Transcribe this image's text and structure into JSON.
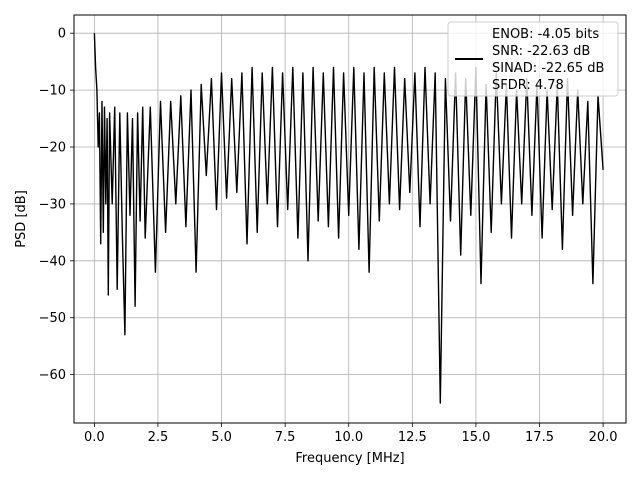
{
  "chart_data": {
    "type": "line",
    "title": "",
    "xlabel": "Frequency [MHz]",
    "ylabel": "PSD [dB]",
    "xlim": [
      -0.8,
      20.9
    ],
    "ylim": [
      -68.5,
      3.2
    ],
    "grid": true,
    "xticks": [
      0.0,
      2.5,
      5.0,
      7.5,
      10.0,
      12.5,
      15.0,
      17.5,
      20.0
    ],
    "xtick_labels": [
      "0.0",
      "2.5",
      "5.0",
      "7.5",
      "10.0",
      "12.5",
      "15.0",
      "17.5",
      "20.0"
    ],
    "yticks": [
      0,
      -10,
      -20,
      -30,
      -40,
      -50,
      -60
    ],
    "ytick_labels": [
      "0",
      "−10",
      "−20",
      "−30",
      "−40",
      "−50",
      "−60"
    ],
    "legend": {
      "placement": "top-right",
      "entries": [
        "ENOB: -4.05 bits",
        "SNR: -22.63 dB",
        "SINAD: -22.65 dB",
        "SFDR: 4.78"
      ]
    },
    "series": [
      {
        "color": "#000000",
        "x": [
          0.0,
          0.05,
          0.1,
          0.15,
          0.2,
          0.25,
          0.3,
          0.35,
          0.4,
          0.45,
          0.5,
          0.55,
          0.6,
          0.7,
          0.8,
          0.9,
          1.0,
          1.1,
          1.2,
          1.3,
          1.4,
          1.5,
          1.6,
          1.7,
          1.8,
          1.9,
          2.0,
          2.2,
          2.4,
          2.6,
          2.8,
          3.0,
          3.2,
          3.4,
          3.6,
          3.8,
          4.0,
          4.2,
          4.4,
          4.6,
          4.8,
          5.0,
          5.2,
          5.4,
          5.6,
          5.8,
          6.0,
          6.2,
          6.4,
          6.6,
          6.8,
          7.0,
          7.2,
          7.4,
          7.6,
          7.8,
          8.0,
          8.2,
          8.4,
          8.6,
          8.8,
          9.0,
          9.2,
          9.4,
          9.6,
          9.8,
          10.0,
          10.2,
          10.4,
          10.6,
          10.8,
          11.0,
          11.2,
          11.4,
          11.6,
          11.8,
          12.0,
          12.2,
          12.4,
          12.6,
          12.8,
          13.0,
          13.2,
          13.4,
          13.6,
          13.8,
          14.0,
          14.2,
          14.4,
          14.6,
          14.8,
          15.0,
          15.2,
          15.4,
          15.6,
          15.8,
          16.0,
          16.2,
          16.4,
          16.6,
          16.8,
          17.0,
          17.2,
          17.4,
          17.6,
          17.8,
          18.0,
          18.2,
          18.4,
          18.6,
          18.8,
          19.0,
          19.2,
          19.4,
          19.6,
          19.8,
          20.0
        ],
        "y": [
          0.0,
          -6.0,
          -10.0,
          -20.0,
          -14.0,
          -37.0,
          -12.0,
          -35.0,
          -13.0,
          -30.0,
          -15.0,
          -46.0,
          -14.0,
          -30.0,
          -13.0,
          -45.0,
          -14.0,
          -35.0,
          -53.0,
          -14.0,
          -32.0,
          -15.0,
          -48.0,
          -14.0,
          -33.0,
          -13.0,
          -36.0,
          -13.0,
          -42.0,
          -12.0,
          -35.0,
          -12.0,
          -30.0,
          -11.0,
          -34.0,
          -10.0,
          -42.0,
          -9.0,
          -25.0,
          -8.0,
          -31.0,
          -7.0,
          -29.0,
          -8.0,
          -28.0,
          -7.0,
          -37.0,
          -6.0,
          -35.0,
          -7.0,
          -30.0,
          -6.0,
          -34.0,
          -7.0,
          -31.0,
          -6.0,
          -36.0,
          -7.0,
          -40.0,
          -6.0,
          -33.0,
          -7.0,
          -34.0,
          -6.0,
          -36.0,
          -7.0,
          -32.0,
          -6.0,
          -38.0,
          -7.0,
          -42.0,
          -6.0,
          -33.0,
          -7.0,
          -30.0,
          -6.0,
          -31.0,
          -8.0,
          -28.0,
          -7.0,
          -34.0,
          -6.0,
          -30.0,
          -7.0,
          -65.0,
          -8.0,
          -33.0,
          -7.0,
          -39.0,
          -8.0,
          -32.0,
          -6.0,
          -44.0,
          -9.0,
          -35.0,
          -7.0,
          -30.0,
          -9.0,
          -36.0,
          -10.0,
          -30.0,
          -8.0,
          -32.0,
          -9.0,
          -36.0,
          -10.0,
          -31.0,
          -9.0,
          -38.0,
          -8.0,
          -32.0,
          -10.0,
          -30.0,
          -12.0,
          -44.0,
          -11.0,
          -24.0
        ]
      }
    ]
  }
}
